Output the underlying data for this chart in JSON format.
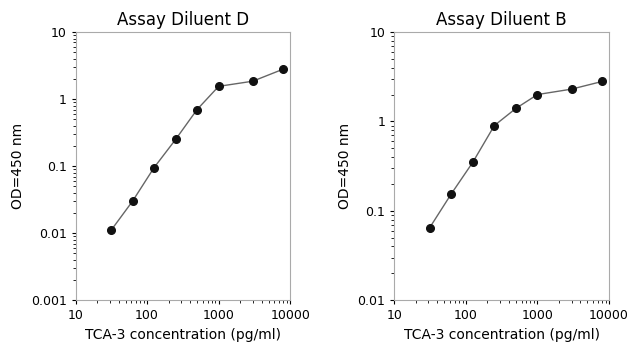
{
  "left": {
    "title": "Assay Diluent D",
    "x": [
      31.25,
      62.5,
      125,
      250,
      500,
      1000,
      3000,
      8000
    ],
    "y": [
      0.011,
      0.03,
      0.095,
      0.25,
      0.7,
      1.55,
      1.85,
      2.8
    ],
    "xlim": [
      10,
      10000
    ],
    "ylim": [
      0.001,
      10
    ],
    "xlabel": "TCA-3 concentration (pg/ml)",
    "ylabel": "OD=450 nm",
    "xtick_vals": [
      10,
      100,
      1000,
      10000
    ],
    "xtick_labels": [
      "10",
      "100",
      "1000",
      "10000"
    ],
    "ytick_vals": [
      0.001,
      0.01,
      0.1,
      1,
      10
    ],
    "ytick_labels": [
      "0.001",
      "0.01",
      "0.1",
      "1",
      "10"
    ]
  },
  "right": {
    "title": "Assay Diluent B",
    "x": [
      31.25,
      62.5,
      125,
      250,
      500,
      1000,
      3000,
      8000
    ],
    "y": [
      0.065,
      0.155,
      0.35,
      0.9,
      1.4,
      2.0,
      2.3,
      2.8
    ],
    "xlim": [
      10,
      10000
    ],
    "ylim": [
      0.01,
      10
    ],
    "xlabel": "TCA-3 concentration (pg/ml)",
    "ylabel": "OD=450 nm",
    "xtick_vals": [
      10,
      100,
      1000,
      10000
    ],
    "xtick_labels": [
      "10",
      "100",
      "1000",
      "10000"
    ],
    "ytick_vals": [
      0.01,
      0.1,
      1,
      10
    ],
    "ytick_labels": [
      "0.01",
      "0.1",
      "1",
      "10"
    ]
  },
  "line_color": "#666666",
  "marker_color": "#111111",
  "marker_size": 5.5,
  "title_fontsize": 12,
  "label_fontsize": 10,
  "tick_fontsize": 9,
  "bg_color": "#ffffff",
  "spine_color": "#aaaaaa"
}
